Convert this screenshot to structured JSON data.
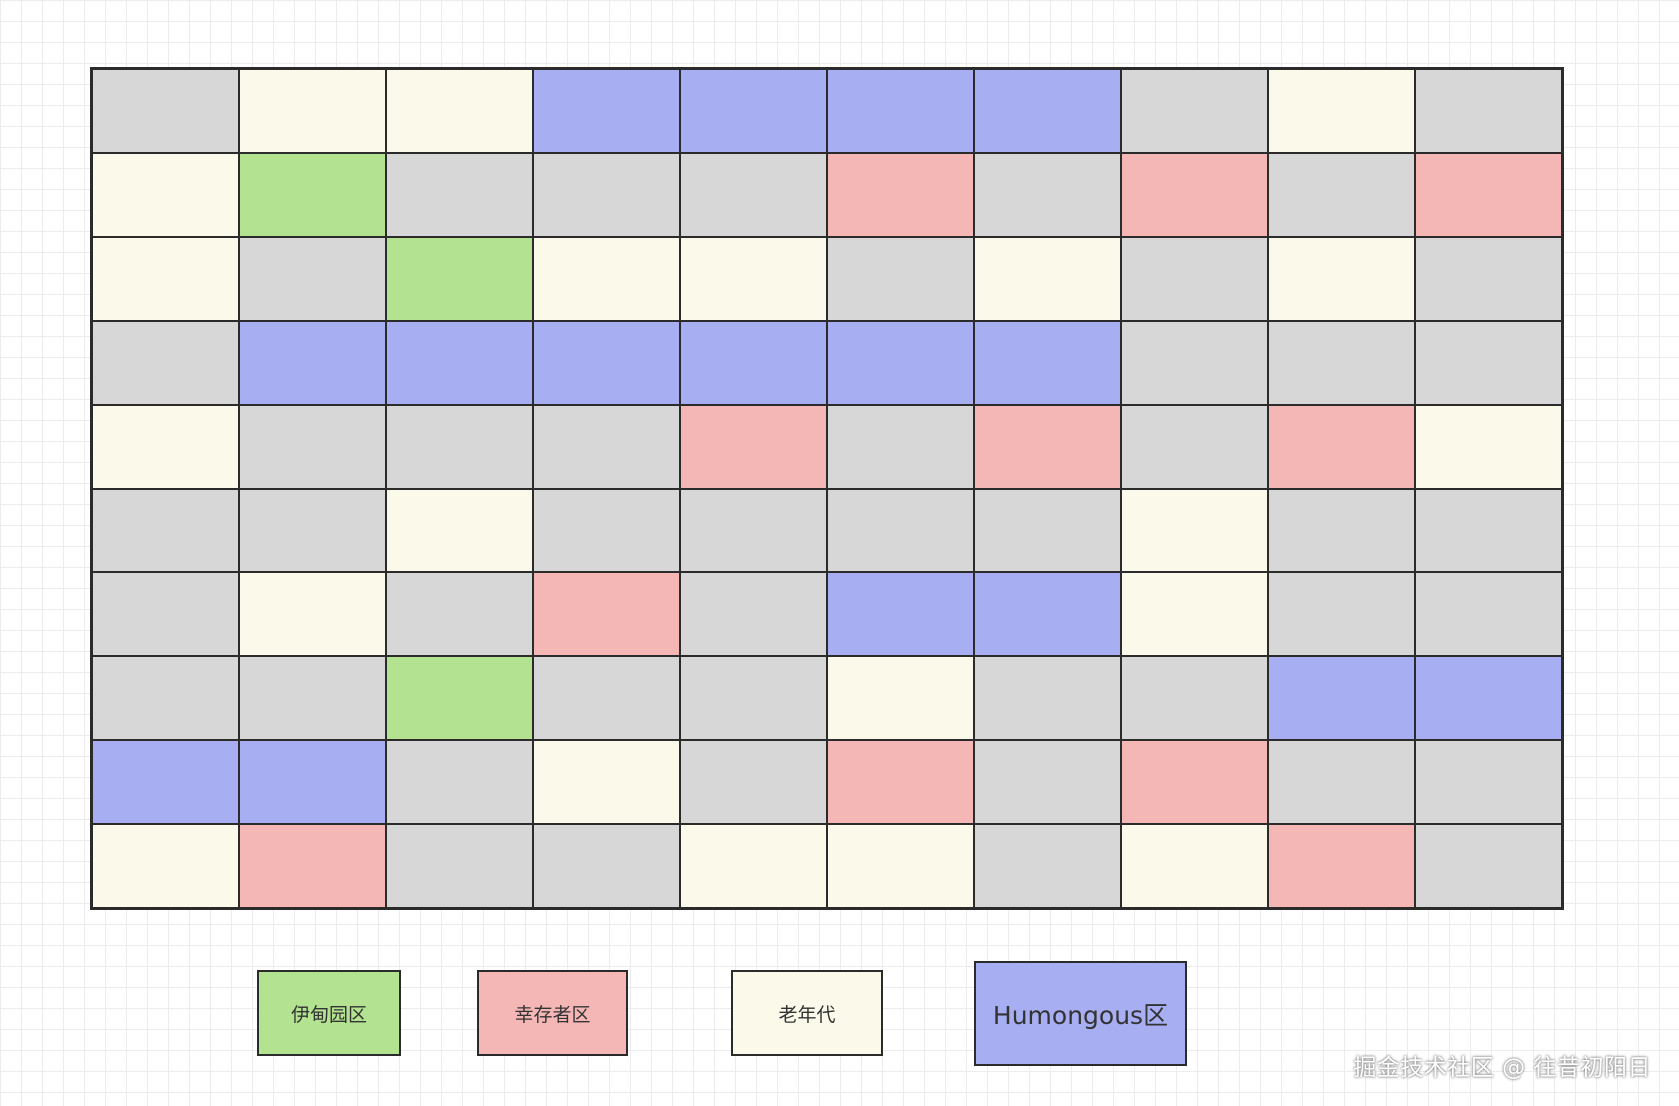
{
  "colors": {
    "eden": "#b3e390",
    "survivor": "#f5b7b5",
    "old": "#faf9ea",
    "humongous": "#a7aef2",
    "empty": "#d7d7d7"
  },
  "grid": [
    [
      "empty",
      "old",
      "old",
      "humongous",
      "humongous",
      "humongous",
      "humongous",
      "empty",
      "old",
      "empty"
    ],
    [
      "old",
      "eden",
      "empty",
      "empty",
      "empty",
      "survivor",
      "empty",
      "survivor",
      "empty",
      "survivor"
    ],
    [
      "old",
      "empty",
      "eden",
      "old",
      "old",
      "empty",
      "old",
      "empty",
      "old",
      "empty"
    ],
    [
      "empty",
      "humongous",
      "humongous",
      "humongous",
      "humongous",
      "humongous",
      "humongous",
      "empty",
      "empty",
      "empty"
    ],
    [
      "old",
      "empty",
      "empty",
      "empty",
      "survivor",
      "empty",
      "survivor",
      "empty",
      "survivor",
      "old"
    ],
    [
      "empty",
      "empty",
      "old",
      "empty",
      "empty",
      "empty",
      "empty",
      "old",
      "empty",
      "empty"
    ],
    [
      "empty",
      "old",
      "empty",
      "survivor",
      "empty",
      "humongous",
      "humongous",
      "old",
      "empty",
      "empty"
    ],
    [
      "empty",
      "empty",
      "eden",
      "empty",
      "empty",
      "old",
      "empty",
      "empty",
      "humongous",
      "humongous"
    ],
    [
      "humongous",
      "humongous",
      "empty",
      "old",
      "empty",
      "survivor",
      "empty",
      "survivor",
      "empty",
      "empty"
    ],
    [
      "old",
      "survivor",
      "empty",
      "empty",
      "old",
      "old",
      "empty",
      "old",
      "survivor",
      "empty"
    ]
  ],
  "legend": {
    "eden": "伊甸园区",
    "survivor": "幸存者区",
    "old": "老年代",
    "humongous": "Humongous区"
  },
  "watermark": "掘金技术社区 @ 往昔初阳日"
}
